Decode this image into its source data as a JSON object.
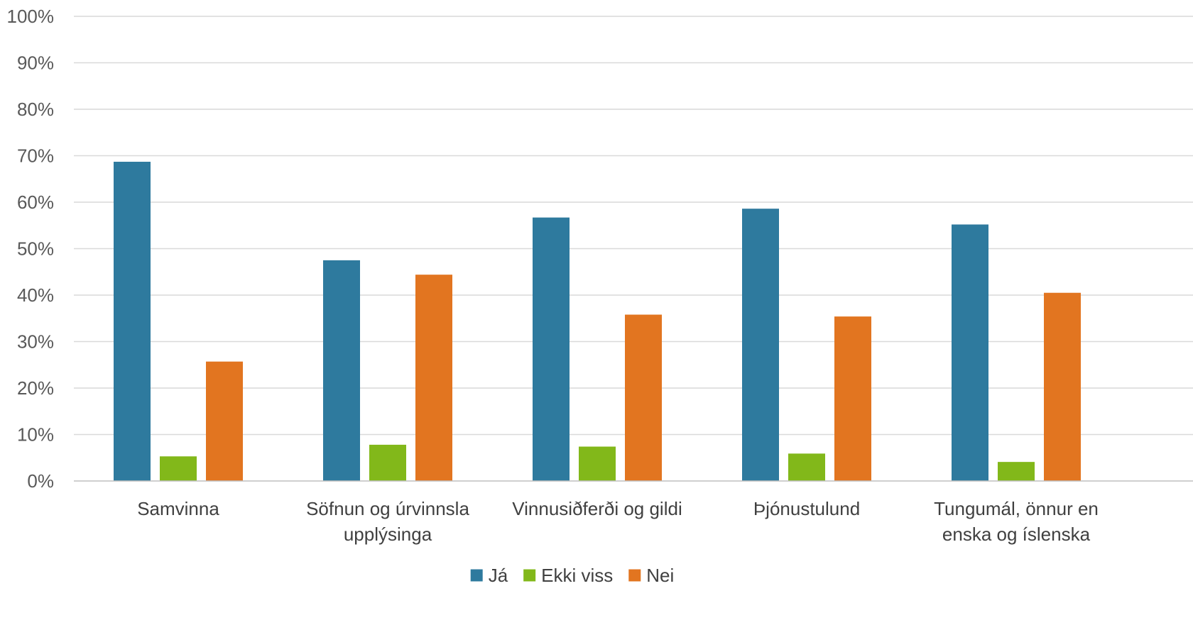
{
  "chart_data": {
    "type": "bar",
    "title": "",
    "xlabel": "",
    "ylabel": "",
    "ylim": [
      0,
      100
    ],
    "yticks": [
      "0%",
      "10%",
      "20%",
      "30%",
      "40%",
      "50%",
      "60%",
      "70%",
      "80%",
      "90%",
      "100%"
    ],
    "grid": true,
    "legend_position": "bottom",
    "categories": [
      [
        "Samvinna"
      ],
      [
        "Söfnun og úrvinnsla",
        "upplýsinga"
      ],
      [
        "Vinnusiðferði og gildi"
      ],
      [
        "Þjónustulund"
      ],
      [
        "Tungumál, önnur en",
        "enska og íslenska"
      ]
    ],
    "series": [
      {
        "name": "Já",
        "color": "#2e7a9e",
        "values": [
          68.7,
          47.5,
          56.7,
          58.6,
          55.2
        ]
      },
      {
        "name": "Ekki viss",
        "color": "#82b81a",
        "values": [
          5.3,
          7.8,
          7.4,
          5.9,
          4.1
        ]
      },
      {
        "name": "Nei",
        "color": "#e27520",
        "values": [
          25.7,
          44.4,
          35.8,
          35.4,
          40.5
        ]
      }
    ]
  }
}
